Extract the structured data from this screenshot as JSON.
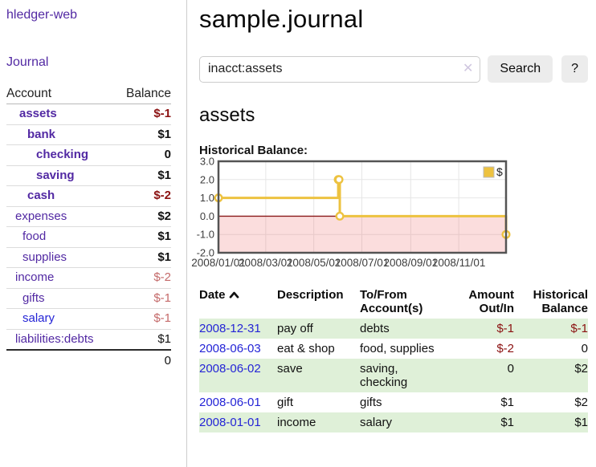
{
  "app": {
    "title": "hledger-web"
  },
  "sidebar": {
    "journal_label": "Journal",
    "table_headers": {
      "account": "Account",
      "balance": "Balance"
    },
    "accounts": [
      {
        "name": "assets",
        "balance": "$-1"
      },
      {
        "name": "bank",
        "balance": "$1"
      },
      {
        "name": "checking",
        "balance": "0"
      },
      {
        "name": "saving",
        "balance": "$1"
      },
      {
        "name": "cash",
        "balance": "$-2"
      },
      {
        "name": "expenses",
        "balance": "$2"
      },
      {
        "name": "food",
        "balance": "$1"
      },
      {
        "name": "supplies",
        "balance": "$1"
      },
      {
        "name": "income",
        "balance": "$-2"
      },
      {
        "name": "gifts",
        "balance": "$-1"
      },
      {
        "name": "salary",
        "balance": "$-1"
      },
      {
        "name": "liabilities:debts",
        "balance": "$1"
      }
    ],
    "total": "0"
  },
  "main": {
    "title": "sample.journal",
    "search": {
      "value": "inacct:assets",
      "clear_icon": "✕",
      "button_label": "Search",
      "help_label": "?"
    },
    "account_heading": "assets",
    "chart_label": "Historical Balance:"
  },
  "chart_data": {
    "type": "line",
    "title": "Historical Balance",
    "step": true,
    "series": [
      {
        "name": "$",
        "color": "#edc240",
        "points": [
          {
            "date": "2008-01-01",
            "value": 1
          },
          {
            "date": "2008-06-01",
            "value": 2
          },
          {
            "date": "2008-06-02",
            "value": 2
          },
          {
            "date": "2008-06-03",
            "value": 0
          },
          {
            "date": "2008-12-31",
            "value": -1
          }
        ]
      }
    ],
    "x_ticks": [
      "2008/01/01",
      "2008/03/01",
      "2008/05/01",
      "2008/07/01",
      "2008/09/01",
      "2008/11/01"
    ],
    "y_ticks": [
      3.0,
      2.0,
      1.0,
      0.0,
      -1.0,
      -2.0
    ],
    "xlim": [
      "2008-01-01",
      "2008-12-31"
    ],
    "ylim": [
      -2,
      3
    ],
    "grid": true,
    "legend": {
      "position": "top-right",
      "label": "$"
    },
    "negative_region": true
  },
  "register": {
    "headers": {
      "date": "Date",
      "description": "Description",
      "accounts": "To/From\nAccount(s)",
      "amount": "Amount\nOut/In",
      "balance": "Historical\nBalance"
    },
    "rows": [
      {
        "date": "2008-12-31",
        "description": "pay off",
        "accounts": "debts",
        "amount": "$-1",
        "balance": "$-1"
      },
      {
        "date": "2008-06-03",
        "description": "eat & shop",
        "accounts": "food, supplies",
        "amount": "$-2",
        "balance": "0"
      },
      {
        "date": "2008-06-02",
        "description": "save",
        "accounts": "saving,\nchecking",
        "amount": "0",
        "balance": "$2"
      },
      {
        "date": "2008-06-01",
        "description": "gift",
        "accounts": "gifts",
        "amount": "$1",
        "balance": "$2"
      },
      {
        "date": "2008-01-01",
        "description": "income",
        "accounts": "salary",
        "amount": "$1",
        "balance": "$1"
      }
    ]
  },
  "colors": {
    "link_purple": "#5229a3",
    "link_blue": "#2424d6",
    "negative_dark": "#8b1111",
    "negative_soft": "#c46a6a",
    "row_green": "#dff0d8",
    "chart_line": "#edc240",
    "chart_zero_line": "#8b1a1a",
    "chart_negative_fill": "#fbdddd",
    "chart_border": "#545454"
  }
}
